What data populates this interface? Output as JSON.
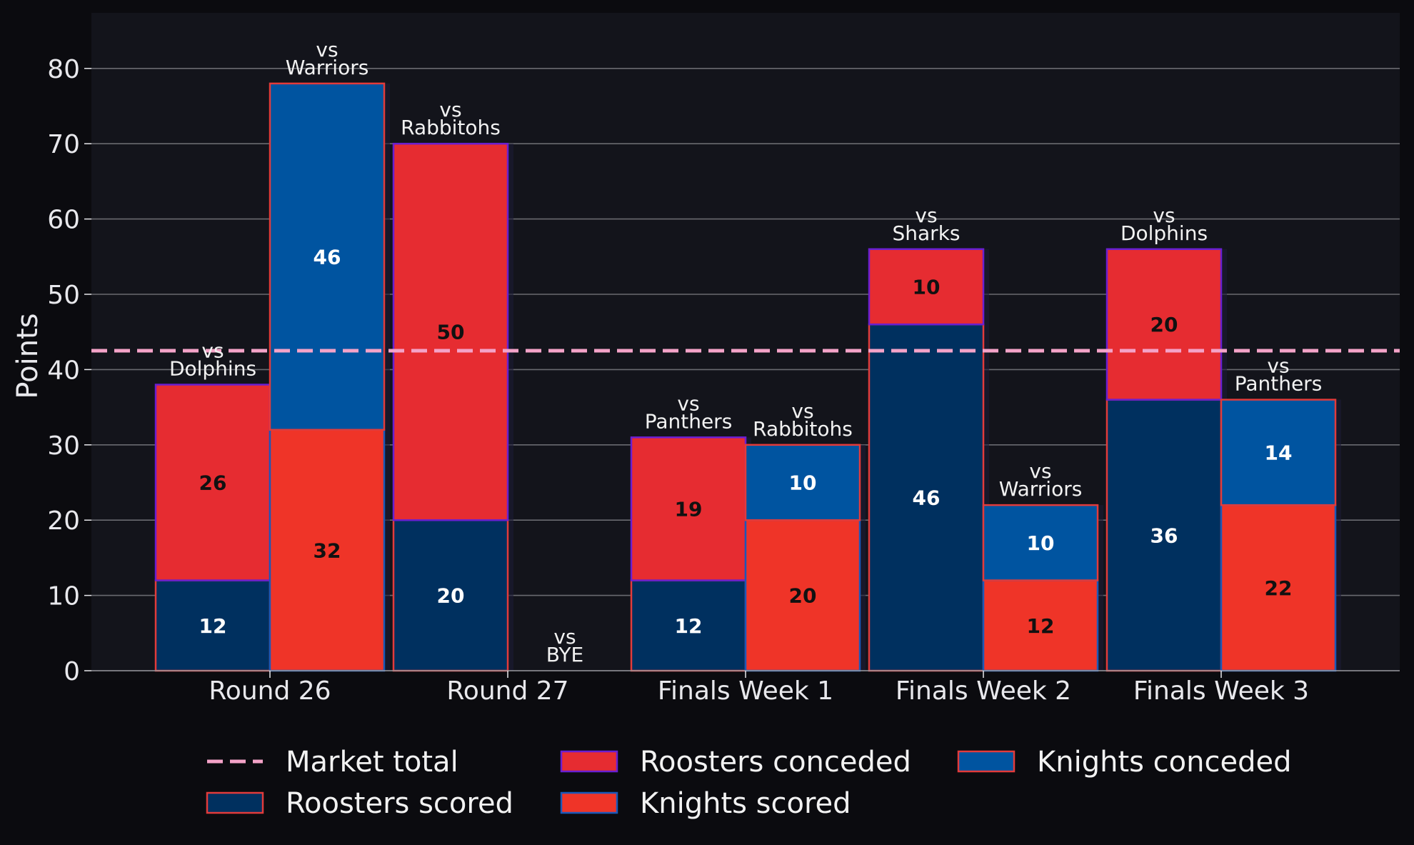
{
  "chart_data": {
    "type": "bar",
    "title": "",
    "xlabel": "",
    "ylabel": "Points",
    "ylim": [
      0,
      87
    ],
    "yticks": [
      0,
      10,
      20,
      30,
      40,
      50,
      60,
      70,
      80
    ],
    "grid": true,
    "categories": [
      "Round 26",
      "Round 27",
      "Finals Week 1",
      "Finals Week 2",
      "Finals Week 3"
    ],
    "reference_line": {
      "name": "Market total",
      "value": 42.5,
      "color": "#f4a3c8",
      "style": "dashed"
    },
    "series": [
      {
        "name": "Roosters scored",
        "color": "#00305f",
        "edge": "#e23b3b",
        "values": [
          12,
          20,
          12,
          46,
          36
        ]
      },
      {
        "name": "Roosters conceded",
        "color": "#e62c31",
        "edge": "#6a1fd0",
        "values": [
          26,
          50,
          19,
          10,
          20
        ]
      },
      {
        "name": "Knights scored",
        "color": "#ef3428",
        "edge": "#1b58b8",
        "values": [
          32,
          0,
          20,
          12,
          22
        ]
      },
      {
        "name": "Knights conceded",
        "color": "#0054a0",
        "edge": "#e23b3b",
        "values": [
          46,
          0,
          10,
          10,
          14
        ]
      }
    ],
    "matches": [
      {
        "team": "Roosters",
        "category": "Round 26",
        "opponent_line1": "vs",
        "opponent_line2": "Dolphins",
        "scored": 12,
        "conceded": 26
      },
      {
        "team": "Knights",
        "category": "Round 26",
        "opponent_line1": "vs",
        "opponent_line2": "Warriors",
        "scored": 32,
        "conceded": 46
      },
      {
        "team": "Roosters",
        "category": "Round 27",
        "opponent_line1": "vs",
        "opponent_line2": "Rabbitohs",
        "scored": 20,
        "conceded": 50
      },
      {
        "team": "Knights",
        "category": "Round 27",
        "opponent_line1": "vs",
        "opponent_line2": "BYE",
        "scored": 0,
        "conceded": 0
      },
      {
        "team": "Roosters",
        "category": "Finals Week 1",
        "opponent_line1": "vs",
        "opponent_line2": "Panthers",
        "scored": 12,
        "conceded": 19
      },
      {
        "team": "Knights",
        "category": "Finals Week 1",
        "opponent_line1": "vs",
        "opponent_line2": "Rabbitohs",
        "scored": 20,
        "conceded": 10
      },
      {
        "team": "Roosters",
        "category": "Finals Week 2",
        "opponent_line1": "vs",
        "opponent_line2": "Sharks",
        "scored": 46,
        "conceded": 10
      },
      {
        "team": "Knights",
        "category": "Finals Week 2",
        "opponent_line1": "vs",
        "opponent_line2": "Warriors",
        "scored": 12,
        "conceded": 10
      },
      {
        "team": "Roosters",
        "category": "Finals Week 3",
        "opponent_line1": "vs",
        "opponent_line2": "Dolphins",
        "scored": 36,
        "conceded": 20
      },
      {
        "team": "Knights",
        "category": "Finals Week 3",
        "opponent_line1": "vs",
        "opponent_line2": "Panthers",
        "scored": 22,
        "conceded": 14
      }
    ],
    "legend": {
      "position": "bottom",
      "entries": [
        "Market total",
        "Roosters conceded",
        "Knights conceded",
        "Roosters scored",
        "Knights scored"
      ]
    },
    "colors": {
      "figure_background": "#0b0b0f",
      "plot_background": "#13141b",
      "grid": "#6a6a70",
      "text": "#e8e8ec"
    }
  }
}
